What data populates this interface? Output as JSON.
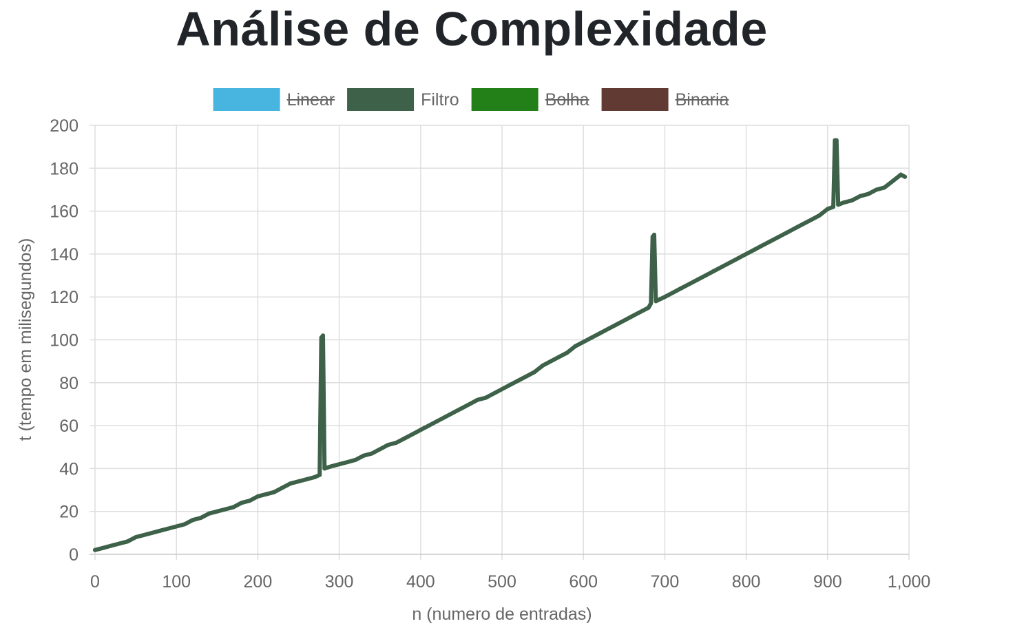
{
  "title": "Análise de Complexidade",
  "chart_data": {
    "type": "line",
    "xlabel": "n (numero de entradas)",
    "ylabel": "t (tempo em milisegundos)",
    "xlim": [
      0,
      1000
    ],
    "ylim": [
      0,
      200
    ],
    "x_ticks": [
      "0",
      "100",
      "200",
      "300",
      "400",
      "500",
      "600",
      "700",
      "800",
      "900",
      "1,000"
    ],
    "y_ticks": [
      "0",
      "20",
      "40",
      "60",
      "80",
      "100",
      "120",
      "140",
      "160",
      "180",
      "200"
    ],
    "grid": true,
    "legend_position": "top-center",
    "series": [
      {
        "name": "Linear",
        "color": "#48b4e0",
        "hidden": true,
        "points": []
      },
      {
        "name": "Filtro",
        "color": "#3e6149",
        "hidden": false,
        "points": [
          [
            0,
            2
          ],
          [
            10,
            3
          ],
          [
            20,
            4
          ],
          [
            30,
            5
          ],
          [
            40,
            6
          ],
          [
            50,
            8
          ],
          [
            60,
            9
          ],
          [
            70,
            10
          ],
          [
            80,
            11
          ],
          [
            90,
            12
          ],
          [
            100,
            13
          ],
          [
            110,
            14
          ],
          [
            120,
            16
          ],
          [
            130,
            17
          ],
          [
            140,
            19
          ],
          [
            150,
            20
          ],
          [
            160,
            21
          ],
          [
            170,
            22
          ],
          [
            180,
            24
          ],
          [
            190,
            25
          ],
          [
            200,
            27
          ],
          [
            210,
            28
          ],
          [
            220,
            29
          ],
          [
            230,
            31
          ],
          [
            240,
            33
          ],
          [
            250,
            34
          ],
          [
            260,
            35
          ],
          [
            270,
            36
          ],
          [
            276,
            37
          ],
          [
            278,
            101
          ],
          [
            280,
            102
          ],
          [
            282,
            40
          ],
          [
            290,
            41
          ],
          [
            300,
            42
          ],
          [
            310,
            43
          ],
          [
            320,
            44
          ],
          [
            330,
            46
          ],
          [
            340,
            47
          ],
          [
            350,
            49
          ],
          [
            360,
            51
          ],
          [
            370,
            52
          ],
          [
            380,
            54
          ],
          [
            390,
            56
          ],
          [
            400,
            58
          ],
          [
            410,
            60
          ],
          [
            420,
            62
          ],
          [
            430,
            64
          ],
          [
            440,
            66
          ],
          [
            450,
            68
          ],
          [
            460,
            70
          ],
          [
            470,
            72
          ],
          [
            480,
            73
          ],
          [
            490,
            75
          ],
          [
            500,
            77
          ],
          [
            510,
            79
          ],
          [
            520,
            81
          ],
          [
            530,
            83
          ],
          [
            540,
            85
          ],
          [
            550,
            88
          ],
          [
            560,
            90
          ],
          [
            570,
            92
          ],
          [
            580,
            94
          ],
          [
            590,
            97
          ],
          [
            600,
            99
          ],
          [
            610,
            101
          ],
          [
            620,
            103
          ],
          [
            630,
            105
          ],
          [
            640,
            107
          ],
          [
            650,
            109
          ],
          [
            660,
            111
          ],
          [
            670,
            113
          ],
          [
            680,
            115
          ],
          [
            683,
            117
          ],
          [
            685,
            148
          ],
          [
            687,
            149
          ],
          [
            689,
            118
          ],
          [
            700,
            120
          ],
          [
            710,
            122
          ],
          [
            720,
            124
          ],
          [
            730,
            126
          ],
          [
            740,
            128
          ],
          [
            750,
            130
          ],
          [
            760,
            132
          ],
          [
            770,
            134
          ],
          [
            780,
            136
          ],
          [
            790,
            138
          ],
          [
            800,
            140
          ],
          [
            810,
            142
          ],
          [
            820,
            144
          ],
          [
            830,
            146
          ],
          [
            840,
            148
          ],
          [
            850,
            150
          ],
          [
            860,
            152
          ],
          [
            870,
            154
          ],
          [
            880,
            156
          ],
          [
            890,
            158
          ],
          [
            900,
            161
          ],
          [
            907,
            162
          ],
          [
            909,
            193
          ],
          [
            911,
            193
          ],
          [
            913,
            163
          ],
          [
            920,
            164
          ],
          [
            930,
            165
          ],
          [
            940,
            167
          ],
          [
            950,
            168
          ],
          [
            960,
            170
          ],
          [
            970,
            171
          ],
          [
            980,
            174
          ],
          [
            990,
            177
          ],
          [
            995,
            176
          ]
        ]
      },
      {
        "name": "Bolha",
        "color": "#237f17",
        "hidden": true,
        "points": []
      },
      {
        "name": "Binaria",
        "color": "#613a33",
        "hidden": true,
        "points": []
      }
    ]
  }
}
